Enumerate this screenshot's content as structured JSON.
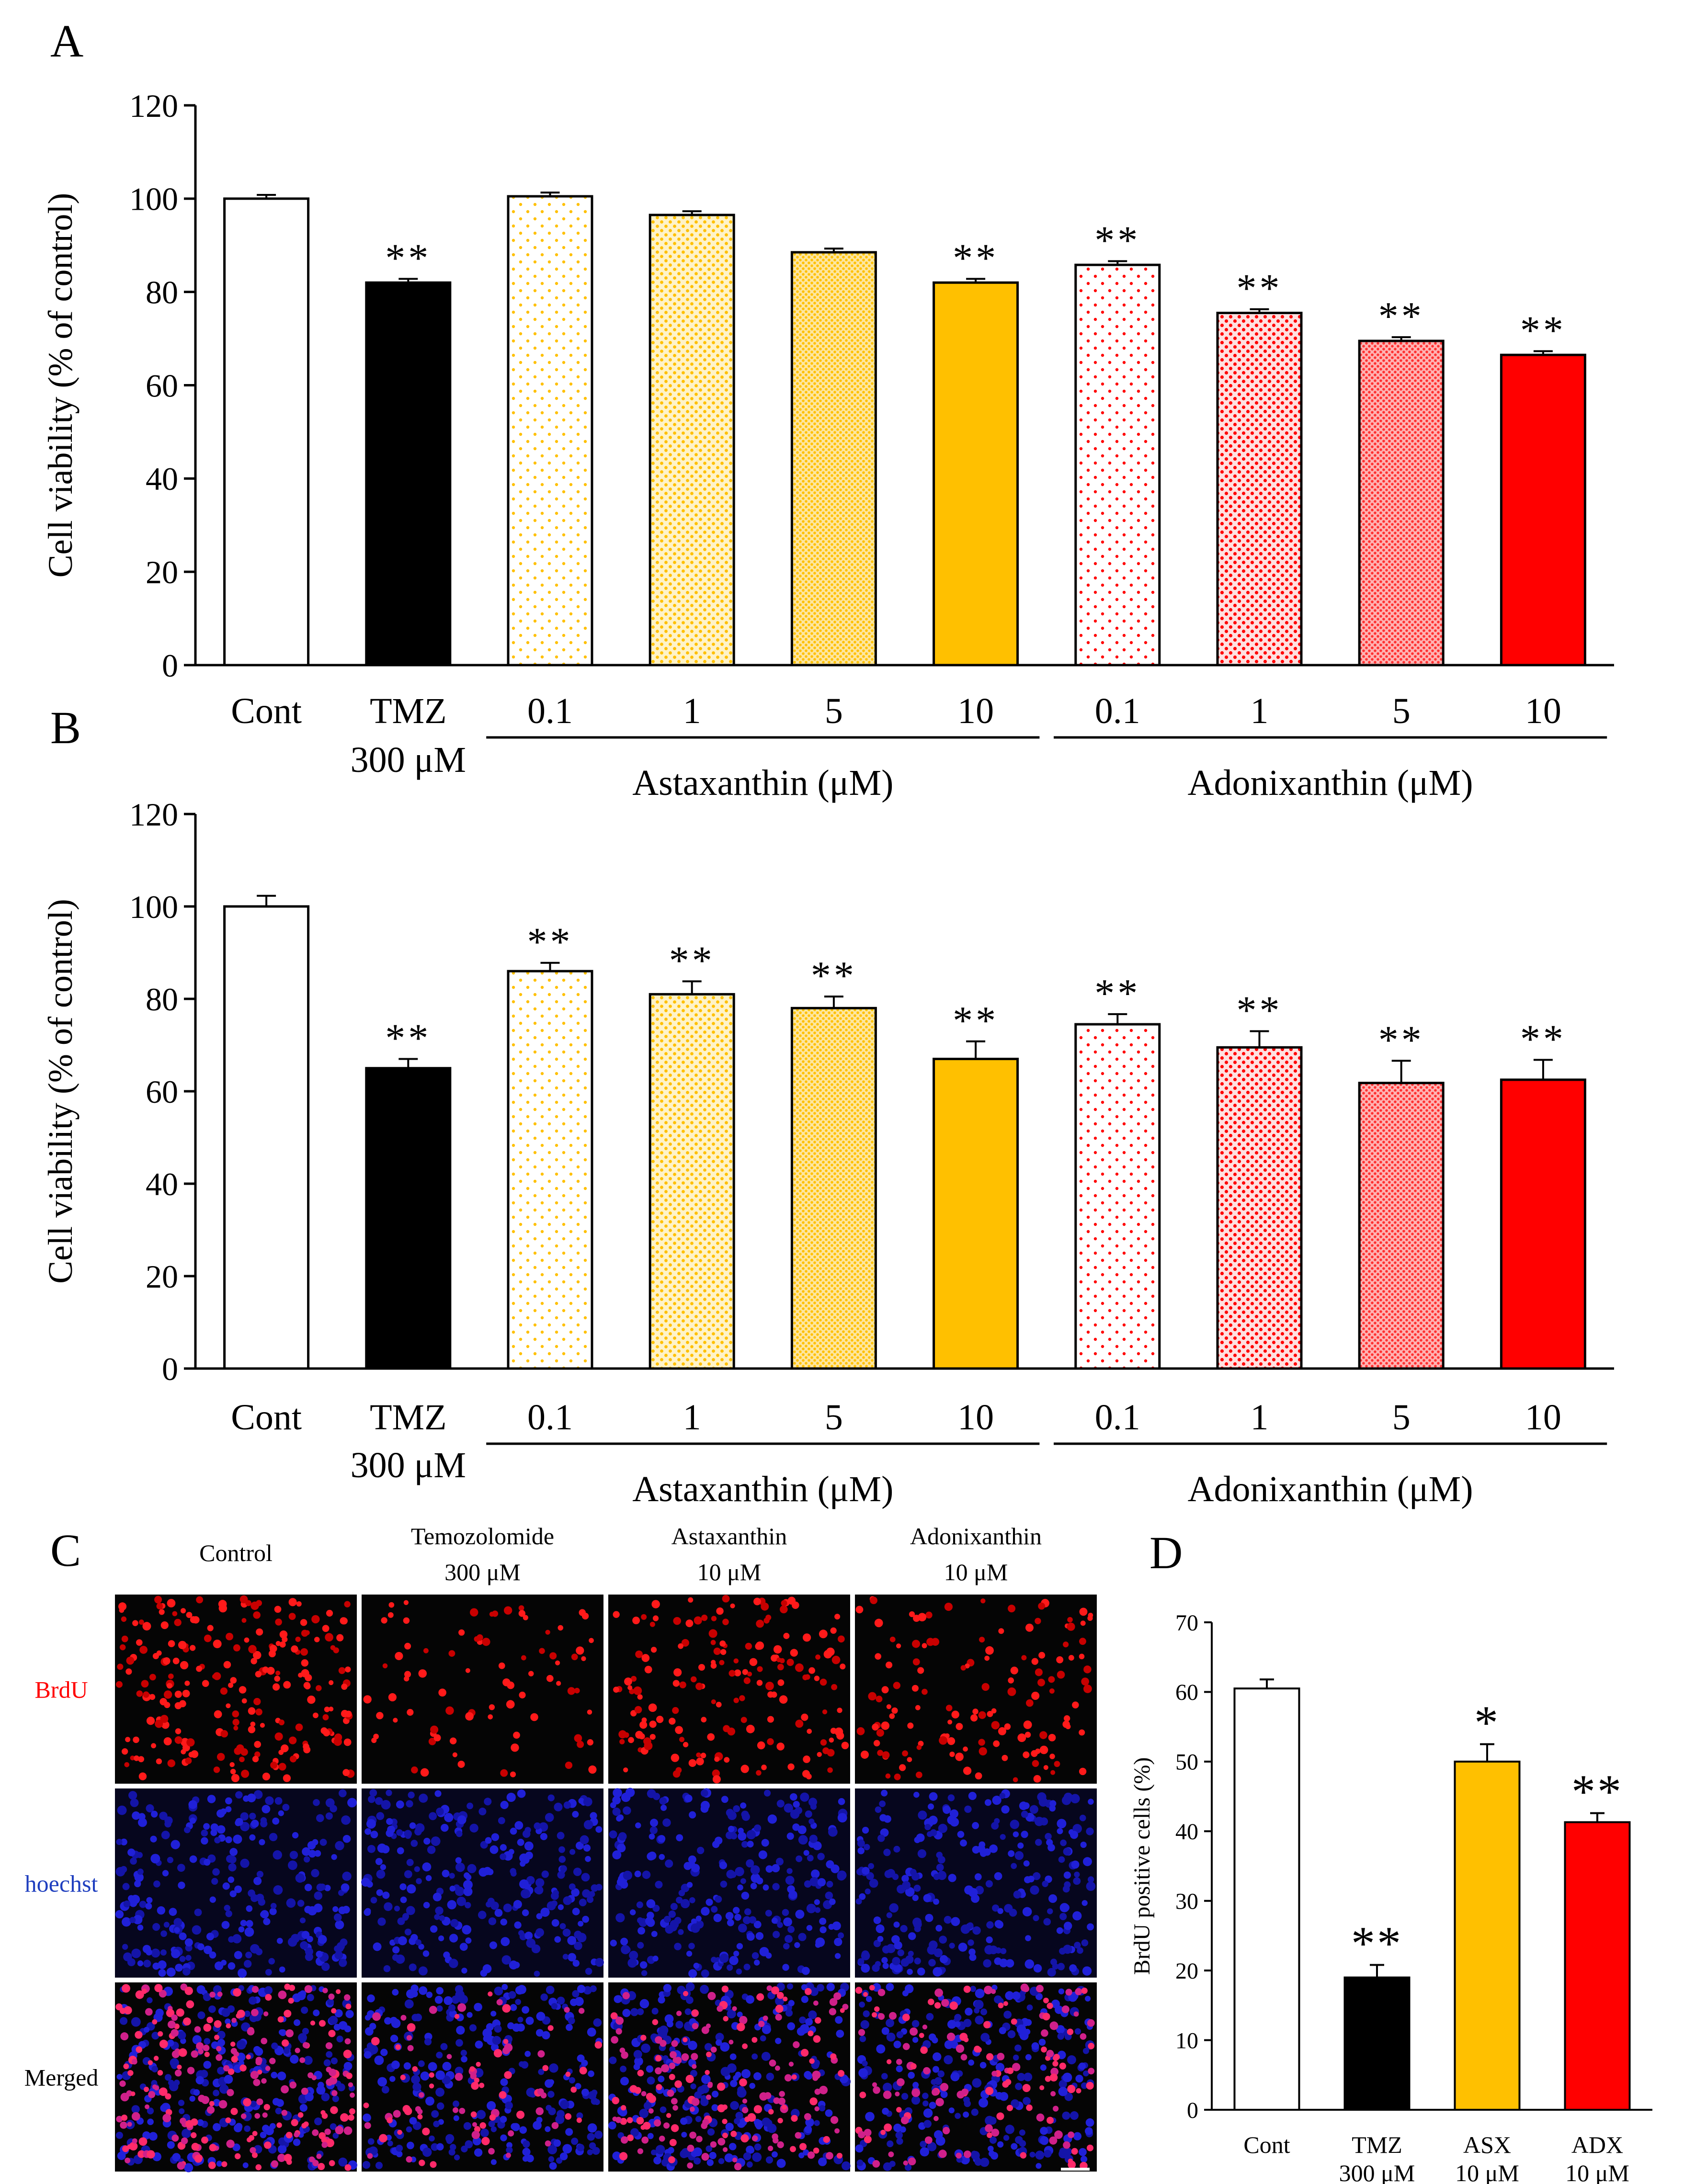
{
  "panels": {
    "A": "A",
    "B": "B",
    "C": "C",
    "D": "D"
  },
  "colors": {
    "white": "#ffffff",
    "black": "#000000",
    "astaxanthin": "#ffc000",
    "adonixanthin": "#ff0000",
    "brdu_label": "#ff0000",
    "hoechst_label": "#1f3fbf"
  },
  "chart_data": [
    {
      "id": "A",
      "type": "bar",
      "ylabel": "Cell viability (% of control)",
      "ylim": [
        0,
        120
      ],
      "yticks": [
        0,
        20,
        40,
        60,
        80,
        100,
        120
      ],
      "categories": [
        {
          "line1": "Cont",
          "line2": ""
        },
        {
          "line1": "TMZ",
          "line2": "300 μM"
        },
        {
          "line1": "0.1",
          "line2": ""
        },
        {
          "line1": "1",
          "line2": ""
        },
        {
          "line1": "5",
          "line2": ""
        },
        {
          "line1": "10",
          "line2": ""
        },
        {
          "line1": "0.1",
          "line2": ""
        },
        {
          "line1": "1",
          "line2": ""
        },
        {
          "line1": "5",
          "line2": ""
        },
        {
          "line1": "10",
          "line2": ""
        }
      ],
      "values": [
        100,
        82,
        100.5,
        96.5,
        88.5,
        82,
        85.8,
        75.5,
        69.5,
        66.5
      ],
      "errors": [
        0.8,
        0.8,
        0.8,
        0.8,
        0.8,
        0.8,
        0.8,
        0.8,
        0.8,
        0.8
      ],
      "significance": [
        "",
        "**",
        "",
        "",
        "",
        "**",
        "**",
        "**",
        "**",
        "**"
      ],
      "fills": [
        "white",
        "black",
        "ast-dots-sparse",
        "ast-dots-dense",
        "ast-dots-denser",
        "ast-solid",
        "red-dots-sparse",
        "red-dots-dense",
        "red-dots-denser",
        "red-solid"
      ],
      "groups": [
        {
          "label": "Astaxanthin (μM)",
          "from": 2,
          "to": 5
        },
        {
          "label": "Adonixanthin (μM)",
          "from": 6,
          "to": 9
        }
      ]
    },
    {
      "id": "B",
      "type": "bar",
      "ylabel": "Cell viability (% of control)",
      "ylim": [
        0,
        120
      ],
      "yticks": [
        0,
        20,
        40,
        60,
        80,
        100,
        120
      ],
      "categories": [
        {
          "line1": "Cont",
          "line2": ""
        },
        {
          "line1": "TMZ",
          "line2": "300 μM"
        },
        {
          "line1": "0.1",
          "line2": ""
        },
        {
          "line1": "1",
          "line2": ""
        },
        {
          "line1": "5",
          "line2": ""
        },
        {
          "line1": "10",
          "line2": ""
        },
        {
          "line1": "0.1",
          "line2": ""
        },
        {
          "line1": "1",
          "line2": ""
        },
        {
          "line1": "5",
          "line2": ""
        },
        {
          "line1": "10",
          "line2": ""
        }
      ],
      "values": [
        100,
        65,
        86,
        81,
        78,
        67,
        74.5,
        69.5,
        61.8,
        62.5
      ],
      "errors": [
        2.3,
        2.0,
        1.8,
        2.8,
        2.5,
        3.8,
        2.2,
        3.5,
        4.8,
        4.3
      ],
      "significance": [
        "",
        "**",
        "**",
        "**",
        "**",
        "**",
        "**",
        "**",
        "**",
        "**"
      ],
      "fills": [
        "white",
        "black",
        "ast-dots-sparse",
        "ast-dots-dense",
        "ast-dots-denser",
        "ast-solid",
        "red-dots-sparse",
        "red-dots-dense",
        "red-dots-denser",
        "red-solid"
      ],
      "groups": [
        {
          "label": "Astaxanthin (μM)",
          "from": 2,
          "to": 5
        },
        {
          "label": "Adonixanthin (μM)",
          "from": 6,
          "to": 9
        }
      ]
    },
    {
      "id": "D",
      "type": "bar",
      "ylabel": "BrdU positive cells (%)",
      "ylim": [
        0,
        70
      ],
      "yticks": [
        0,
        10,
        20,
        30,
        40,
        50,
        60,
        70
      ],
      "categories": [
        {
          "line1": "Cont",
          "line2": ""
        },
        {
          "line1": "TMZ",
          "line2": "300 μM"
        },
        {
          "line1": "ASX",
          "line2": "10 μM"
        },
        {
          "line1": "ADX",
          "line2": "10 μM"
        }
      ],
      "values": [
        60.5,
        19,
        50,
        41.3
      ],
      "errors": [
        1.3,
        1.8,
        2.5,
        1.3
      ],
      "significance": [
        "",
        "**",
        "*",
        "**"
      ],
      "fills": [
        "white",
        "black",
        "ast-solid",
        "red-solid"
      ],
      "groups": []
    }
  ],
  "micrographs": {
    "columns": [
      {
        "line1": "Control",
        "line2": ""
      },
      {
        "line1": "Temozolomide",
        "line2": "300 μM"
      },
      {
        "line1": "Astaxanthin",
        "line2": "10 μM"
      },
      {
        "line1": "Adonixanthin",
        "line2": "10 μM"
      }
    ],
    "rows": [
      "BrdU",
      "hoechst",
      "Merged"
    ],
    "densities": [
      1.0,
      0.35,
      0.75,
      0.6
    ]
  }
}
